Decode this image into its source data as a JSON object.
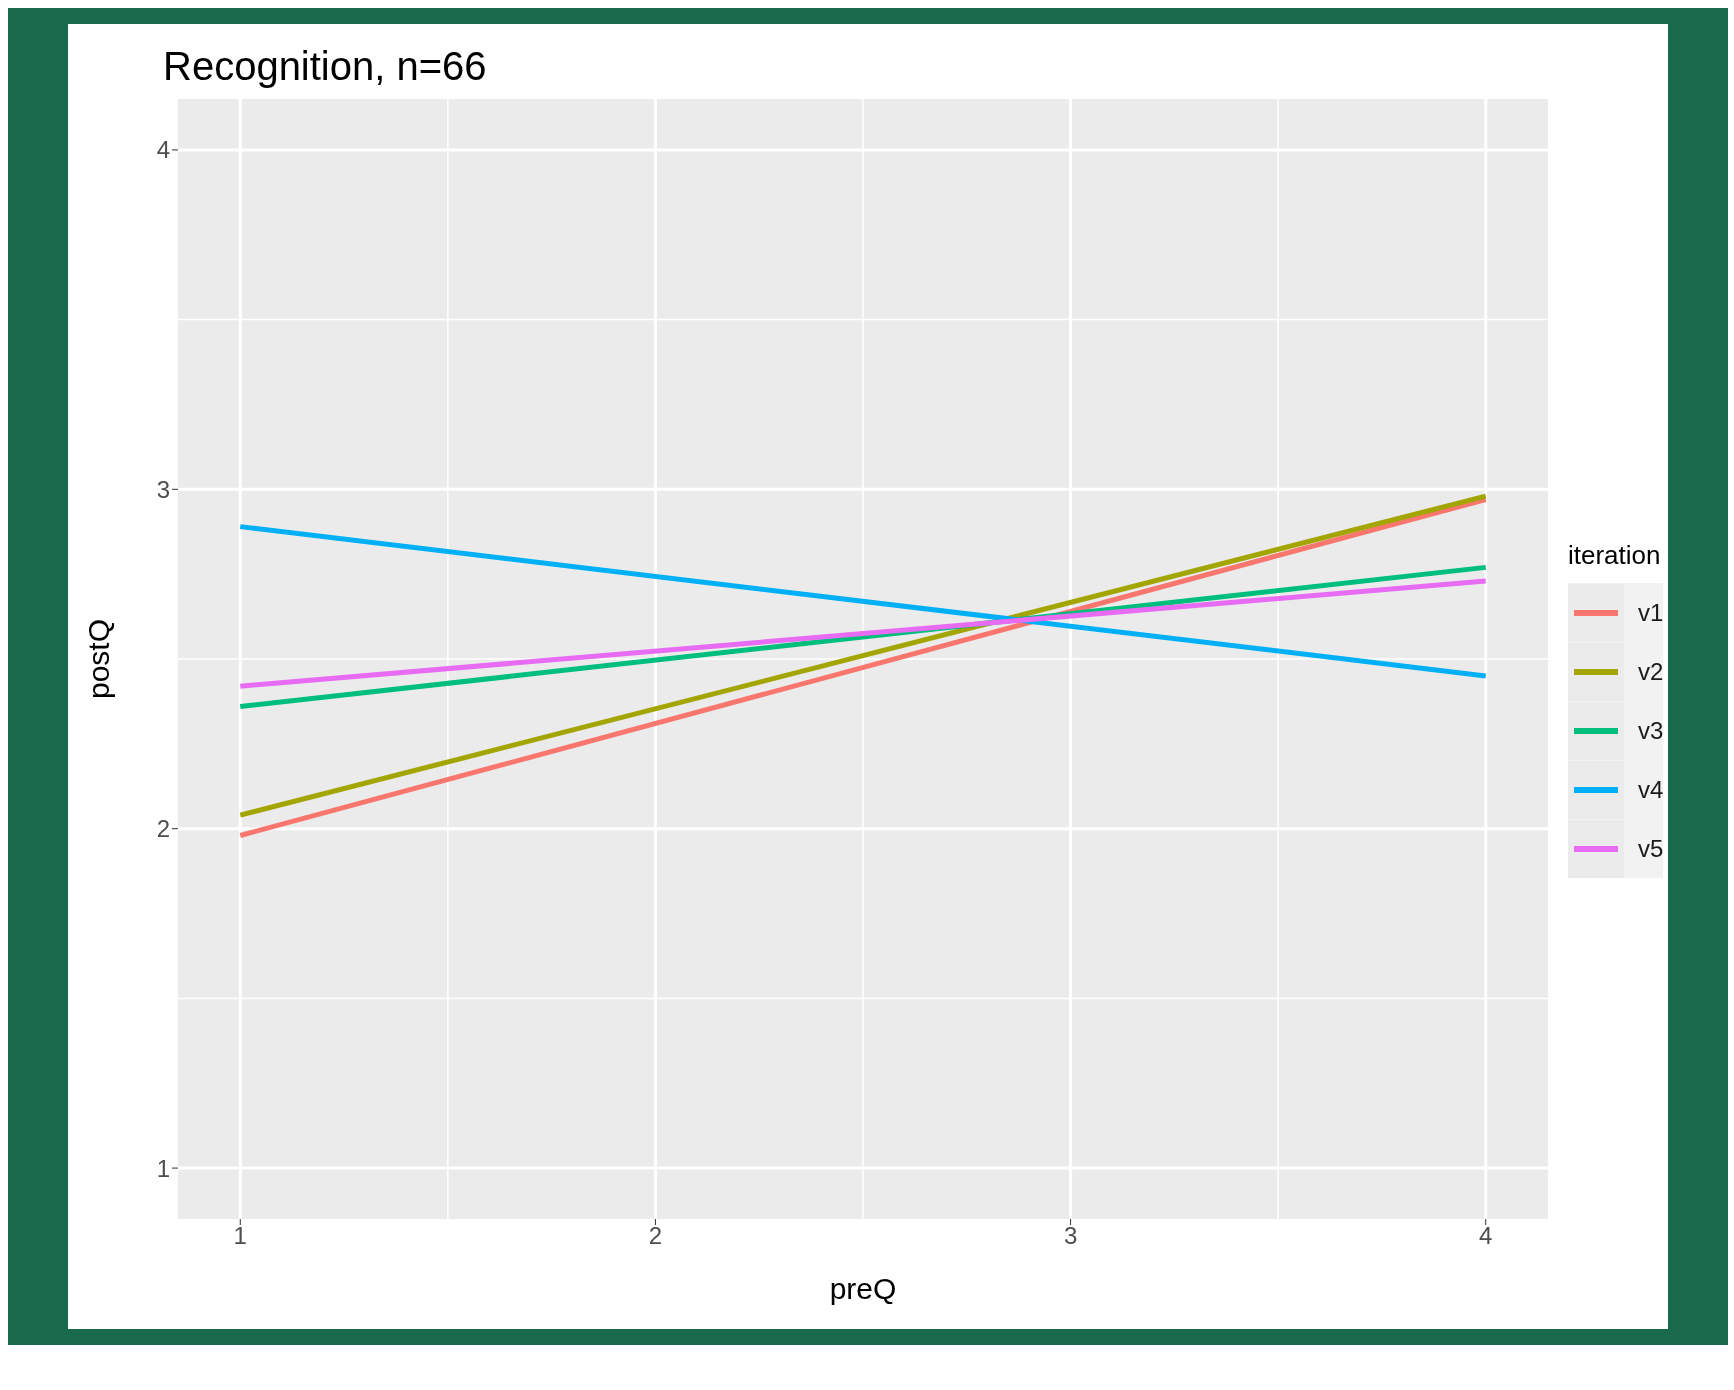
{
  "chart_data": {
    "type": "line",
    "title": "Recognition, n=66",
    "xlabel": "preQ",
    "ylabel": "postQ",
    "legend_title": "iteration",
    "legend": "right",
    "grid": true,
    "marker": "none",
    "line_style": "solid",
    "xlim": [
      0.85,
      4.15
    ],
    "xticks": [
      1,
      2,
      3,
      4
    ],
    "ylim": [
      0.85,
      4.15
    ],
    "yticks": [
      1,
      2,
      3,
      4
    ],
    "x": [
      1,
      4
    ],
    "series": [
      {
        "name": "v1",
        "color": "#f8766d",
        "values": [
          1.98,
          2.97
        ]
      },
      {
        "name": "v2",
        "color": "#a3a500",
        "values": [
          2.04,
          2.98
        ]
      },
      {
        "name": "v3",
        "color": "#00bf7d",
        "values": [
          2.36,
          2.77
        ]
      },
      {
        "name": "v4",
        "color": "#00b0f6",
        "values": [
          2.89,
          2.45
        ]
      },
      {
        "name": "v5",
        "color": "#e76bf3",
        "values": [
          2.42,
          2.73
        ]
      }
    ]
  }
}
